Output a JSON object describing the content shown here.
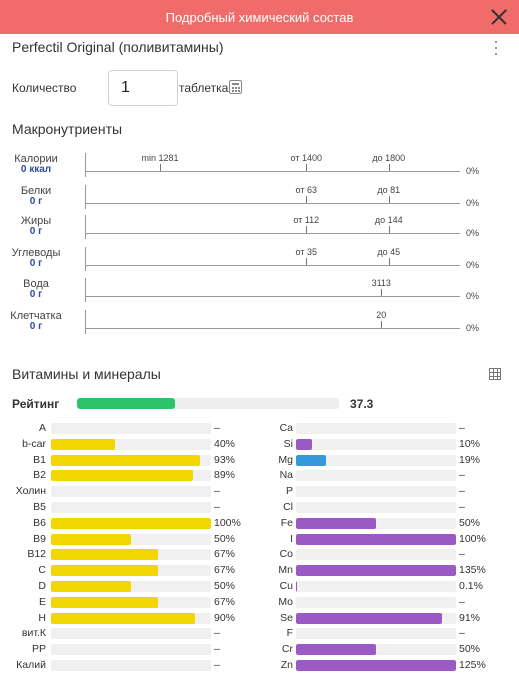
{
  "header": {
    "title": "Подробный химический состав"
  },
  "product": {
    "name": "Perfectil Original (поливитамины)"
  },
  "quantity": {
    "label": "Количество",
    "value": "1",
    "unit": "таблетка"
  },
  "macros": {
    "title": "Макронутриенты",
    "items": [
      {
        "name": "Калории",
        "value": "0 ккал",
        "pct": "0%",
        "marks": [
          {
            "label": "min 1281",
            "pos": 0.2
          },
          {
            "label": "от 1400",
            "pos": 0.59
          },
          {
            "label": "до 1800",
            "pos": 0.81
          }
        ]
      },
      {
        "name": "Белки",
        "value": "0 г",
        "pct": "0%",
        "marks": [
          {
            "label": "от 63",
            "pos": 0.59
          },
          {
            "label": "до 81",
            "pos": 0.81
          }
        ]
      },
      {
        "name": "Жиры",
        "value": "0 г",
        "pct": "0%",
        "marks": [
          {
            "label": "от 112",
            "pos": 0.59
          },
          {
            "label": "до 144",
            "pos": 0.81
          }
        ]
      },
      {
        "name": "Углеводы",
        "value": "0 г",
        "pct": "0%",
        "marks": [
          {
            "label": "от 35",
            "pos": 0.59
          },
          {
            "label": "до 45",
            "pos": 0.81
          }
        ]
      },
      {
        "name": "Вода",
        "value": "0 г",
        "pct": "0%",
        "marks": [
          {
            "label": "3113",
            "pos": 0.79
          }
        ]
      },
      {
        "name": "Клетчатка",
        "value": "0 г",
        "pct": "0%",
        "marks": [
          {
            "label": "20",
            "pos": 0.79
          }
        ]
      }
    ]
  },
  "vitamins": {
    "title": "Витамины и минералы",
    "rating_label": "Рейтинг",
    "rating_value": "37.3",
    "rating_fraction": 0.373,
    "left": [
      {
        "name": "A",
        "pct": "–",
        "fill": 0
      },
      {
        "name": "b-car",
        "pct": "40%",
        "fill": 0.4
      },
      {
        "name": "B1",
        "pct": "93%",
        "fill": 0.93
      },
      {
        "name": "B2",
        "pct": "89%",
        "fill": 0.89
      },
      {
        "name": "Холин",
        "pct": "–",
        "fill": 0
      },
      {
        "name": "B5",
        "pct": "–",
        "fill": 0
      },
      {
        "name": "B6",
        "pct": "100%",
        "fill": 1.0
      },
      {
        "name": "B9",
        "pct": "50%",
        "fill": 0.5
      },
      {
        "name": "B12",
        "pct": "67%",
        "fill": 0.67
      },
      {
        "name": "C",
        "pct": "67%",
        "fill": 0.67
      },
      {
        "name": "D",
        "pct": "50%",
        "fill": 0.5
      },
      {
        "name": "E",
        "pct": "67%",
        "fill": 0.67
      },
      {
        "name": "H",
        "pct": "90%",
        "fill": 0.9
      },
      {
        "name": "вит.К",
        "pct": "–",
        "fill": 0
      },
      {
        "name": "PP",
        "pct": "–",
        "fill": 0
      },
      {
        "name": "Калий",
        "pct": "–",
        "fill": 0
      }
    ],
    "right": [
      {
        "name": "Ca",
        "pct": "–",
        "fill": 0,
        "color": "#9b59c6"
      },
      {
        "name": "Si",
        "pct": "10%",
        "fill": 0.1,
        "color": "#9b59c6"
      },
      {
        "name": "Mg",
        "pct": "19%",
        "fill": 0.19,
        "color": "#3498db"
      },
      {
        "name": "Na",
        "pct": "–",
        "fill": 0,
        "color": "#9b59c6"
      },
      {
        "name": "P",
        "pct": "–",
        "fill": 0,
        "color": "#9b59c6"
      },
      {
        "name": "Cl",
        "pct": "–",
        "fill": 0,
        "color": "#9b59c6"
      },
      {
        "name": "Fe",
        "pct": "50%",
        "fill": 0.5,
        "color": "#9b59c6"
      },
      {
        "name": "I",
        "pct": "100%",
        "fill": 1.0,
        "color": "#9b59c6"
      },
      {
        "name": "Co",
        "pct": "–",
        "fill": 0,
        "color": "#9b59c6"
      },
      {
        "name": "Mn",
        "pct": "135%",
        "fill": 1.0,
        "color": "#9b59c6"
      },
      {
        "name": "Cu",
        "pct": "0.1%",
        "fill": 0.001,
        "color": "#9b59c6"
      },
      {
        "name": "Mo",
        "pct": "–",
        "fill": 0,
        "color": "#9b59c6"
      },
      {
        "name": "Se",
        "pct": "91%",
        "fill": 0.91,
        "color": "#9b59c6"
      },
      {
        "name": "F",
        "pct": "–",
        "fill": 0,
        "color": "#9b59c6"
      },
      {
        "name": "Cr",
        "pct": "50%",
        "fill": 0.5,
        "color": "#9b59c6"
      },
      {
        "name": "Zn",
        "pct": "125%",
        "fill": 1.0,
        "color": "#9b59c6"
      }
    ],
    "vitamin_color": "#f1d600"
  }
}
